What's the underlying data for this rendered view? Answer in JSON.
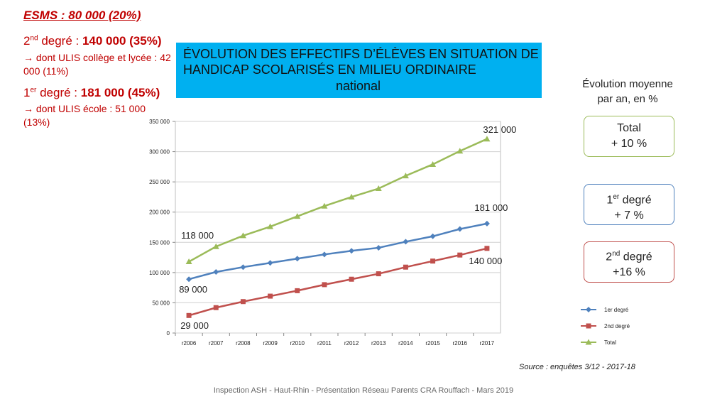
{
  "stats": {
    "esms": "ESMS : 80 000 (20%)",
    "second": {
      "label_pre": "2",
      "label_sup": "nd",
      "label_post": " degré : ",
      "value": "140 000 (35%)",
      "sub": "→ dont ULIS collège et lycée : 42 000 (11%)"
    },
    "first": {
      "label_pre": "1",
      "label_sup": "er",
      "label_post": " degré : ",
      "value": "181 000 (45%)",
      "sub": "→ dont ULIS école : 51 000 (13%)"
    }
  },
  "title": {
    "line1": "ÉVOLUTION DES EFFECTIFS D’ÉLÈVES EN SITUATION DE",
    "line2": "HANDICAP SCOLARISÉS EN MILIEU ORDINAIRE",
    "line3": "national"
  },
  "evolution": {
    "heading_line1": "Évolution moyenne",
    "heading_line2": "par an, en %",
    "total": {
      "label": "Total",
      "value": "+ 10 %",
      "color": "#9bbb59"
    },
    "first": {
      "pre": "1",
      "sup": "er",
      "post": " degré",
      "value": "+ 7 %",
      "color": "#4f81bd"
    },
    "second": {
      "pre": "2",
      "sup": "nd",
      "post": " degré",
      "value": "+16 %",
      "color": "#c0504d"
    }
  },
  "chart_data": {
    "type": "line",
    "categories": [
      "r2006",
      "r2007",
      "r2008",
      "r2009",
      "r2010",
      "r2011",
      "r2012",
      "r2013",
      "r2014",
      "r2015",
      "r2016",
      "r2017"
    ],
    "ylim": [
      0,
      350000
    ],
    "yticks": [
      0,
      50000,
      100000,
      150000,
      200000,
      250000,
      300000,
      350000
    ],
    "ytick_labels": [
      "0",
      "50 000",
      "100 000",
      "150 000",
      "200 000",
      "250 000",
      "300 000",
      "350 000"
    ],
    "grid": "horizontal",
    "legend": "right",
    "series": [
      {
        "name": "1er degré",
        "color": "#4f81bd",
        "marker": "diamond",
        "values": [
          89000,
          101000,
          109000,
          116000,
          123000,
          130000,
          136000,
          141000,
          151000,
          160000,
          172000,
          181000
        ]
      },
      {
        "name": "2nd degré",
        "color": "#c0504d",
        "marker": "square",
        "values": [
          29000,
          42000,
          52000,
          61000,
          70000,
          80000,
          89000,
          98000,
          109000,
          119000,
          129000,
          140000
        ]
      },
      {
        "name": "Total",
        "color": "#9bbb59",
        "marker": "triangle",
        "values": [
          118000,
          143000,
          161000,
          176000,
          193000,
          210000,
          225000,
          239000,
          260000,
          279000,
          301000,
          321000
        ]
      }
    ],
    "annotations": [
      "321 000",
      "181 000",
      "118 000",
      "140 000",
      "89 000",
      "29 000"
    ]
  },
  "source": "Source : enquêtes 3/12 - 2017-18",
  "footer": "Inspection ASH - Haut-Rhin - Présentation Réseau Parents CRA Rouffach - Mars 2019"
}
